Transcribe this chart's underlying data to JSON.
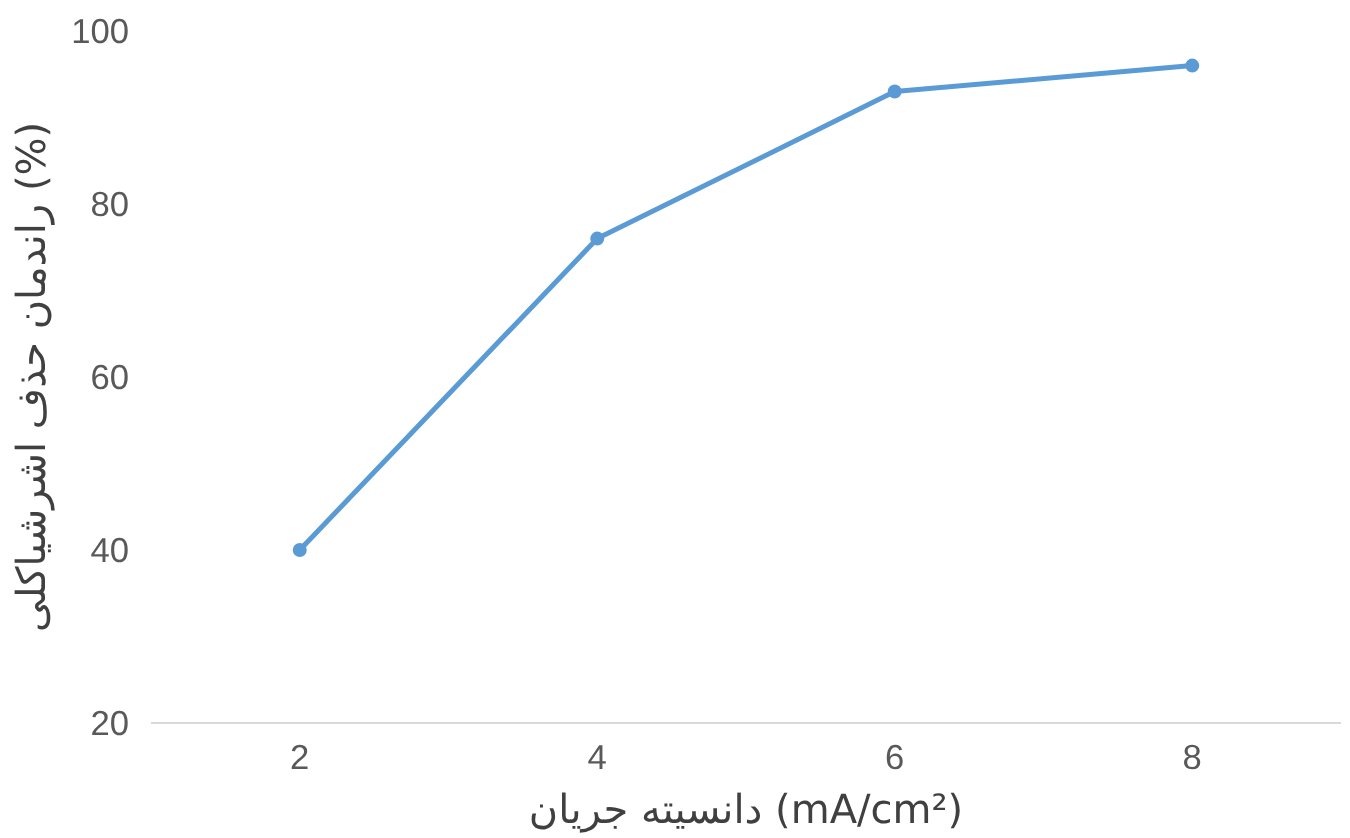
{
  "chart_data": {
    "type": "line",
    "xlabel": "دانسیته جریان (mA/cm²)",
    "ylabel": "راندمان حذف اشرشیاکلی (%)",
    "categories": [
      "2",
      "4",
      "6",
      "8"
    ],
    "series": [
      {
        "color": "#5b9bd5",
        "values": [
          40,
          76,
          93,
          96
        ]
      }
    ],
    "ylim": [
      20,
      100
    ],
    "yticks": [
      20,
      40,
      60,
      80,
      100
    ],
    "grid": false,
    "marker": "circle",
    "line_style": "solid"
  }
}
